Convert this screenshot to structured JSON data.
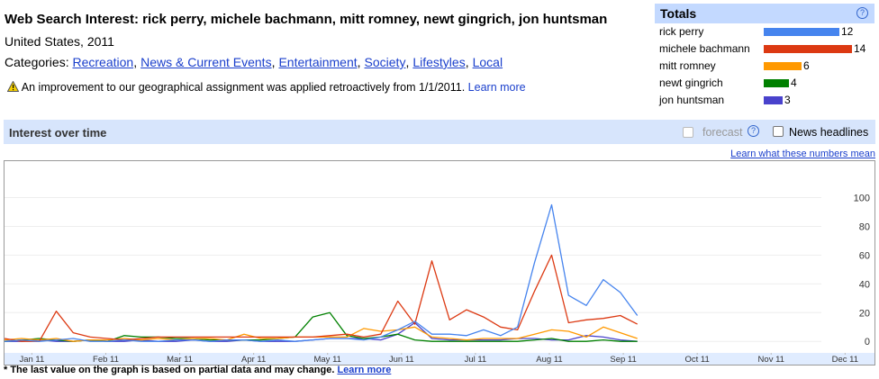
{
  "header": {
    "title": "Web Search Interest: rick perry, michele bachmann, mitt romney, newt gingrich, jon huntsman",
    "subtitle": "United States, 2011",
    "categories_label": "Categories:",
    "categories": [
      "Recreation",
      "News & Current Events",
      "Entertainment",
      "Society",
      "Lifestyles",
      "Local"
    ],
    "notice": "An improvement to our geographical assignment was applied retroactively from 1/1/2011.",
    "notice_link": "Learn more"
  },
  "help_icon": "?",
  "totals": {
    "title": "Totals",
    "items": [
      {
        "name": "rick perry",
        "value": 12,
        "color": "#4684ee"
      },
      {
        "name": "michele bachmann",
        "value": 14,
        "color": "#dc3912"
      },
      {
        "name": "mitt romney",
        "value": 6,
        "color": "#ff9900"
      },
      {
        "name": "newt gingrich",
        "value": 4,
        "color": "#008000"
      },
      {
        "name": "jon huntsman",
        "value": 3,
        "color": "#4942cc"
      }
    ]
  },
  "section": {
    "title": "Interest over time",
    "forecast": "forecast",
    "news": "News headlines",
    "learn_link": "Learn what these numbers mean"
  },
  "chart_data": {
    "type": "line",
    "x": [
      0.13,
      0.36,
      0.6,
      0.83,
      1.06,
      1.29,
      1.52,
      1.75,
      1.98,
      2.21,
      2.45,
      2.68,
      2.91,
      3.14,
      3.37,
      3.6,
      3.83,
      4.06,
      4.3,
      4.53,
      4.76,
      4.99,
      5.22,
      5.45,
      5.68,
      5.91,
      6.15,
      6.38,
      6.61,
      6.84,
      7.07,
      7.3,
      7.53,
      7.76,
      8.0,
      8.23,
      8.46,
      8.69
    ],
    "series": [
      {
        "color": "#4684ee",
        "values": [
          0,
          1,
          0,
          1,
          2,
          0,
          0,
          1,
          0,
          0,
          1,
          1,
          0,
          1,
          1,
          0,
          1,
          0,
          1,
          2,
          2,
          1,
          3,
          8,
          14,
          5,
          5,
          4,
          8,
          4,
          10,
          55,
          95,
          32,
          25,
          43,
          34,
          18
        ]
      },
      {
        "color": "#dc3912",
        "values": [
          2,
          0,
          0,
          21,
          6,
          3,
          2,
          1,
          2,
          3,
          3,
          3,
          3,
          3,
          3,
          3,
          3,
          3,
          3,
          4,
          5,
          3,
          5,
          28,
          12,
          56,
          15,
          22,
          17,
          10,
          8,
          35,
          60,
          13,
          15,
          16,
          18,
          12
        ]
      },
      {
        "color": "#ff9900",
        "values": [
          1,
          2,
          1,
          2,
          0,
          1,
          1,
          2,
          1,
          2,
          1,
          2,
          2,
          1,
          5,
          2,
          2,
          3,
          3,
          3,
          3,
          9,
          7,
          8,
          10,
          3,
          2,
          1,
          2,
          2,
          2,
          5,
          8,
          7,
          3,
          10,
          6,
          2
        ]
      },
      {
        "color": "#008000",
        "values": [
          0,
          1,
          2,
          1,
          0,
          1,
          0,
          4,
          3,
          3,
          2,
          2,
          1,
          1,
          1,
          1,
          2,
          3,
          17,
          20,
          4,
          2,
          3,
          5,
          1,
          0,
          0,
          0,
          0,
          0,
          0,
          1,
          2,
          0,
          0,
          1,
          0,
          0
        ]
      },
      {
        "color": "#4942cc",
        "values": [
          0,
          0,
          1,
          0,
          0,
          1,
          0,
          0,
          1,
          0,
          0,
          1,
          0,
          0,
          1,
          0,
          0,
          0,
          1,
          2,
          2,
          2,
          1,
          5,
          13,
          2,
          1,
          1,
          1,
          1,
          2,
          2,
          1,
          1,
          4,
          3,
          1,
          0
        ]
      }
    ],
    "xlim": [
      0.13,
      11.91
    ],
    "xticks": [
      {
        "value": 0.5,
        "label": "Jan 11"
      },
      {
        "value": 1.5,
        "label": "Feb 11"
      },
      {
        "value": 2.5,
        "label": "Mar 11"
      },
      {
        "value": 3.5,
        "label": "Apr 11"
      },
      {
        "value": 4.5,
        "label": "May 11"
      },
      {
        "value": 5.5,
        "label": "Jun 11"
      },
      {
        "value": 6.5,
        "label": "Jul 11"
      },
      {
        "value": 7.5,
        "label": "Aug 11"
      },
      {
        "value": 8.5,
        "label": "Sep 11"
      },
      {
        "value": 9.5,
        "label": "Oct 11"
      },
      {
        "value": 10.5,
        "label": "Nov 11"
      },
      {
        "value": 11.5,
        "label": "Dec 11"
      }
    ],
    "ylim": [
      -8,
      126
    ],
    "yticks": [
      0,
      20,
      40,
      60,
      80,
      100
    ],
    "grid": true
  },
  "footnote": {
    "text": "* The last value on the graph is based on partial data and may change.",
    "link": "Learn more"
  }
}
